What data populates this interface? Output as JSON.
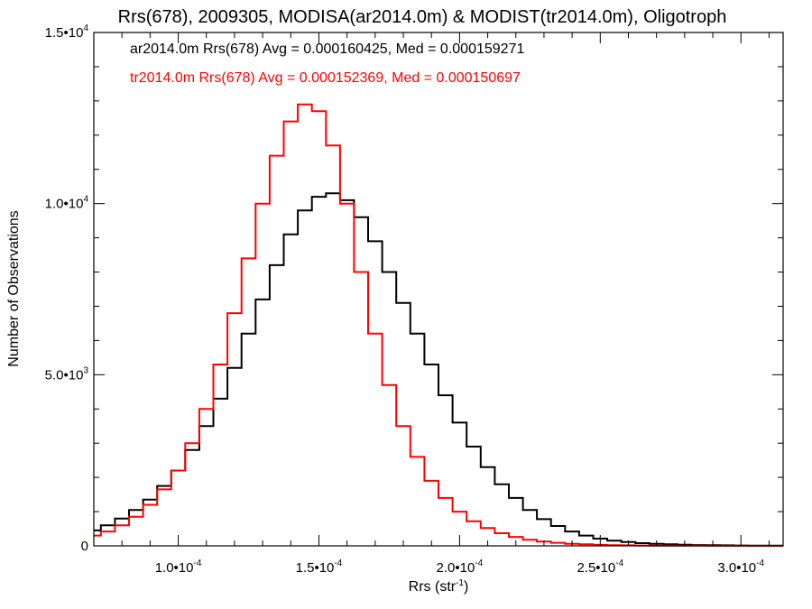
{
  "chart_data": {
    "type": "line",
    "step": true,
    "title": "Rrs(678), 2009305, MODISA(ar2014.0m) & MODIST(tr2014.0m), Oligotroph",
    "xlabel": "Rrs (str",
    "xlabel_sup": "-1",
    "xlabel_suffix": ")",
    "ylabel": "Number of Observations",
    "xlim": [
      7e-05,
      0.000315
    ],
    "ylim": [
      0,
      15000
    ],
    "grid": false,
    "xticks": [
      {
        "value": 0.0001,
        "mantissa": "1.0•10",
        "exp": "-4"
      },
      {
        "value": 0.00015,
        "mantissa": "1.5•10",
        "exp": "-4"
      },
      {
        "value": 0.0002,
        "mantissa": "2.0•10",
        "exp": "-4"
      },
      {
        "value": 0.00025,
        "mantissa": "2.5•10",
        "exp": "-4"
      },
      {
        "value": 0.0003,
        "mantissa": "3.0•10",
        "exp": "-4"
      }
    ],
    "yticks": [
      {
        "value": 0,
        "mantissa": "0",
        "exp": ""
      },
      {
        "value": 5000,
        "mantissa": "5.0•10",
        "exp": "3"
      },
      {
        "value": 10000,
        "mantissa": "1.0•10",
        "exp": "4"
      },
      {
        "value": 15000,
        "mantissa": "1.5•10",
        "exp": "4"
      }
    ],
    "annotations": [
      {
        "text": "ar2014.0m Rrs(678) Avg = 0.000160425, Med = 0.000159271",
        "color": "#000000"
      },
      {
        "text": "tr2014.0m Rrs(678) Avg = 0.000152369, Med = 0.000150697",
        "color": "#ff0000"
      }
    ],
    "x": [
      7e-05,
      7.5e-05,
      8e-05,
      8.5e-05,
      9e-05,
      9.5e-05,
      0.0001,
      0.000105,
      0.00011,
      0.000115,
      0.00012,
      0.000125,
      0.00013,
      0.000135,
      0.00014,
      0.000145,
      0.00015,
      0.000155,
      0.00016,
      0.000165,
      0.00017,
      0.000175,
      0.00018,
      0.000185,
      0.00019,
      0.000195,
      0.0002,
      0.000205,
      0.00021,
      0.000215,
      0.00022,
      0.000225,
      0.00023,
      0.000235,
      0.00024,
      0.000245,
      0.00025,
      0.000255,
      0.00026,
      0.000265,
      0.00027,
      0.000275,
      0.00028,
      0.000285,
      0.00029,
      0.000295,
      0.0003,
      0.000305,
      0.00031,
      0.000315
    ],
    "series": [
      {
        "name": "ar2014.0m",
        "color": "#000000",
        "values": [
          450,
          600,
          800,
          1050,
          1350,
          1750,
          2200,
          2800,
          3500,
          4300,
          5200,
          6200,
          7200,
          8200,
          9100,
          9800,
          10200,
          10300,
          10100,
          9600,
          8900,
          8000,
          7100,
          6200,
          5300,
          4400,
          3600,
          2900,
          2300,
          1800,
          1400,
          1050,
          780,
          580,
          420,
          300,
          210,
          150,
          110,
          80,
          60,
          45,
          35,
          25,
          20,
          15,
          10,
          8,
          5,
          5
        ]
      },
      {
        "name": "tr2014.0m",
        "color": "#ff0000",
        "values": [
          300,
          420,
          600,
          850,
          1200,
          1650,
          2200,
          3000,
          4000,
          5300,
          6800,
          8400,
          10000,
          11400,
          12400,
          12900,
          12700,
          11700,
          10000,
          8000,
          6200,
          4700,
          3500,
          2600,
          1900,
          1400,
          1000,
          720,
          520,
          370,
          260,
          180,
          125,
          90,
          60,
          45,
          30,
          22,
          15,
          10,
          8,
          6,
          5,
          4,
          3,
          2,
          2,
          1,
          1,
          1
        ]
      }
    ]
  }
}
